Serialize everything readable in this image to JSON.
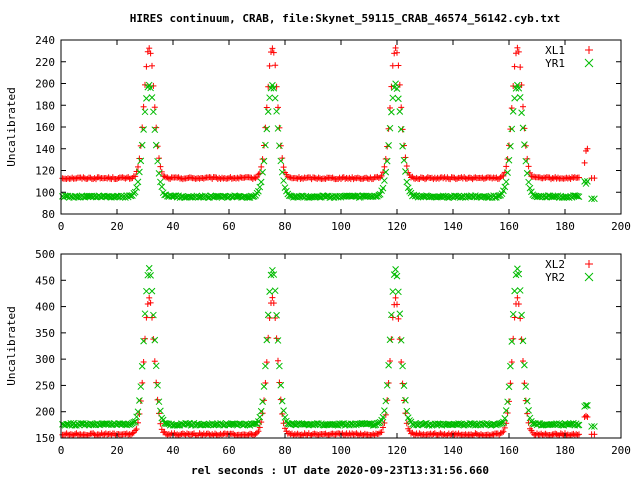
{
  "title": "HIRES continuum, CRAB, file:Skynet_59115_CRAB_46574_56142.cyb.txt",
  "xlabel": "rel seconds : UT date 2020-09-23T13:31:56.660",
  "chart_data": [
    {
      "type": "scatter",
      "ylabel": "Uncalibrated",
      "xlim": [
        0,
        200
      ],
      "ylim": [
        80,
        240
      ],
      "xticks": [
        0,
        20,
        40,
        60,
        80,
        100,
        120,
        140,
        160,
        180,
        200
      ],
      "yticks": [
        80,
        100,
        120,
        140,
        160,
        180,
        200,
        220,
        240
      ],
      "legend_position": "top-right",
      "series": [
        {
          "name": "XL1",
          "color": "#ff0000",
          "marker": "plus",
          "baseline": 113,
          "peak_height": 120,
          "peak_centers": [
            31.5,
            75.5,
            119.5,
            163
          ],
          "peak_sigma": 1.8,
          "x_range": [
            0,
            185
          ],
          "tail": [
            [
              187,
              127
            ],
            [
              187.5,
              138
            ],
            [
              188,
              140
            ],
            [
              189.5,
              113
            ],
            [
              190.5,
              113
            ]
          ]
        },
        {
          "name": "YR1",
          "color": "#00bb00",
          "marker": "cross",
          "baseline": 96,
          "peak_height": 103,
          "peak_centers": [
            31.5,
            75.5,
            119.5,
            163
          ],
          "peak_sigma": 2.0,
          "x_range": [
            0,
            185
          ],
          "tail": [
            [
              187,
              110
            ],
            [
              187.5,
              108
            ],
            [
              188,
              110
            ],
            [
              189.5,
              94
            ],
            [
              190.5,
              94
            ]
          ]
        }
      ]
    },
    {
      "type": "scatter",
      "ylabel": "Uncalibrated",
      "xlim": [
        0,
        200
      ],
      "ylim": [
        150,
        500
      ],
      "xticks": [
        0,
        20,
        40,
        60,
        80,
        100,
        120,
        140,
        160,
        180,
        200
      ],
      "yticks": [
        150,
        200,
        250,
        300,
        350,
        400,
        450,
        500
      ],
      "legend_position": "top-right",
      "series": [
        {
          "name": "XL2",
          "color": "#ff0000",
          "marker": "plus",
          "baseline": 157,
          "peak_height": 258,
          "peak_centers": [
            31.5,
            75.5,
            119.5,
            163
          ],
          "peak_sigma": 1.8,
          "x_range": [
            0,
            185
          ],
          "tail": [
            [
              187,
              190
            ],
            [
              187.5,
              192
            ],
            [
              188,
              190
            ],
            [
              189.5,
              157
            ],
            [
              190.5,
              157
            ]
          ]
        },
        {
          "name": "YR2",
          "color": "#00bb00",
          "marker": "cross",
          "baseline": 176,
          "peak_height": 295,
          "peak_centers": [
            31.5,
            75.5,
            119.5,
            163
          ],
          "peak_sigma": 1.8,
          "x_range": [
            0,
            185
          ],
          "tail": [
            [
              187,
              210
            ],
            [
              187.5,
              212
            ],
            [
              188,
              212
            ],
            [
              189.5,
              172
            ],
            [
              190.5,
              172
            ]
          ]
        }
      ]
    }
  ]
}
